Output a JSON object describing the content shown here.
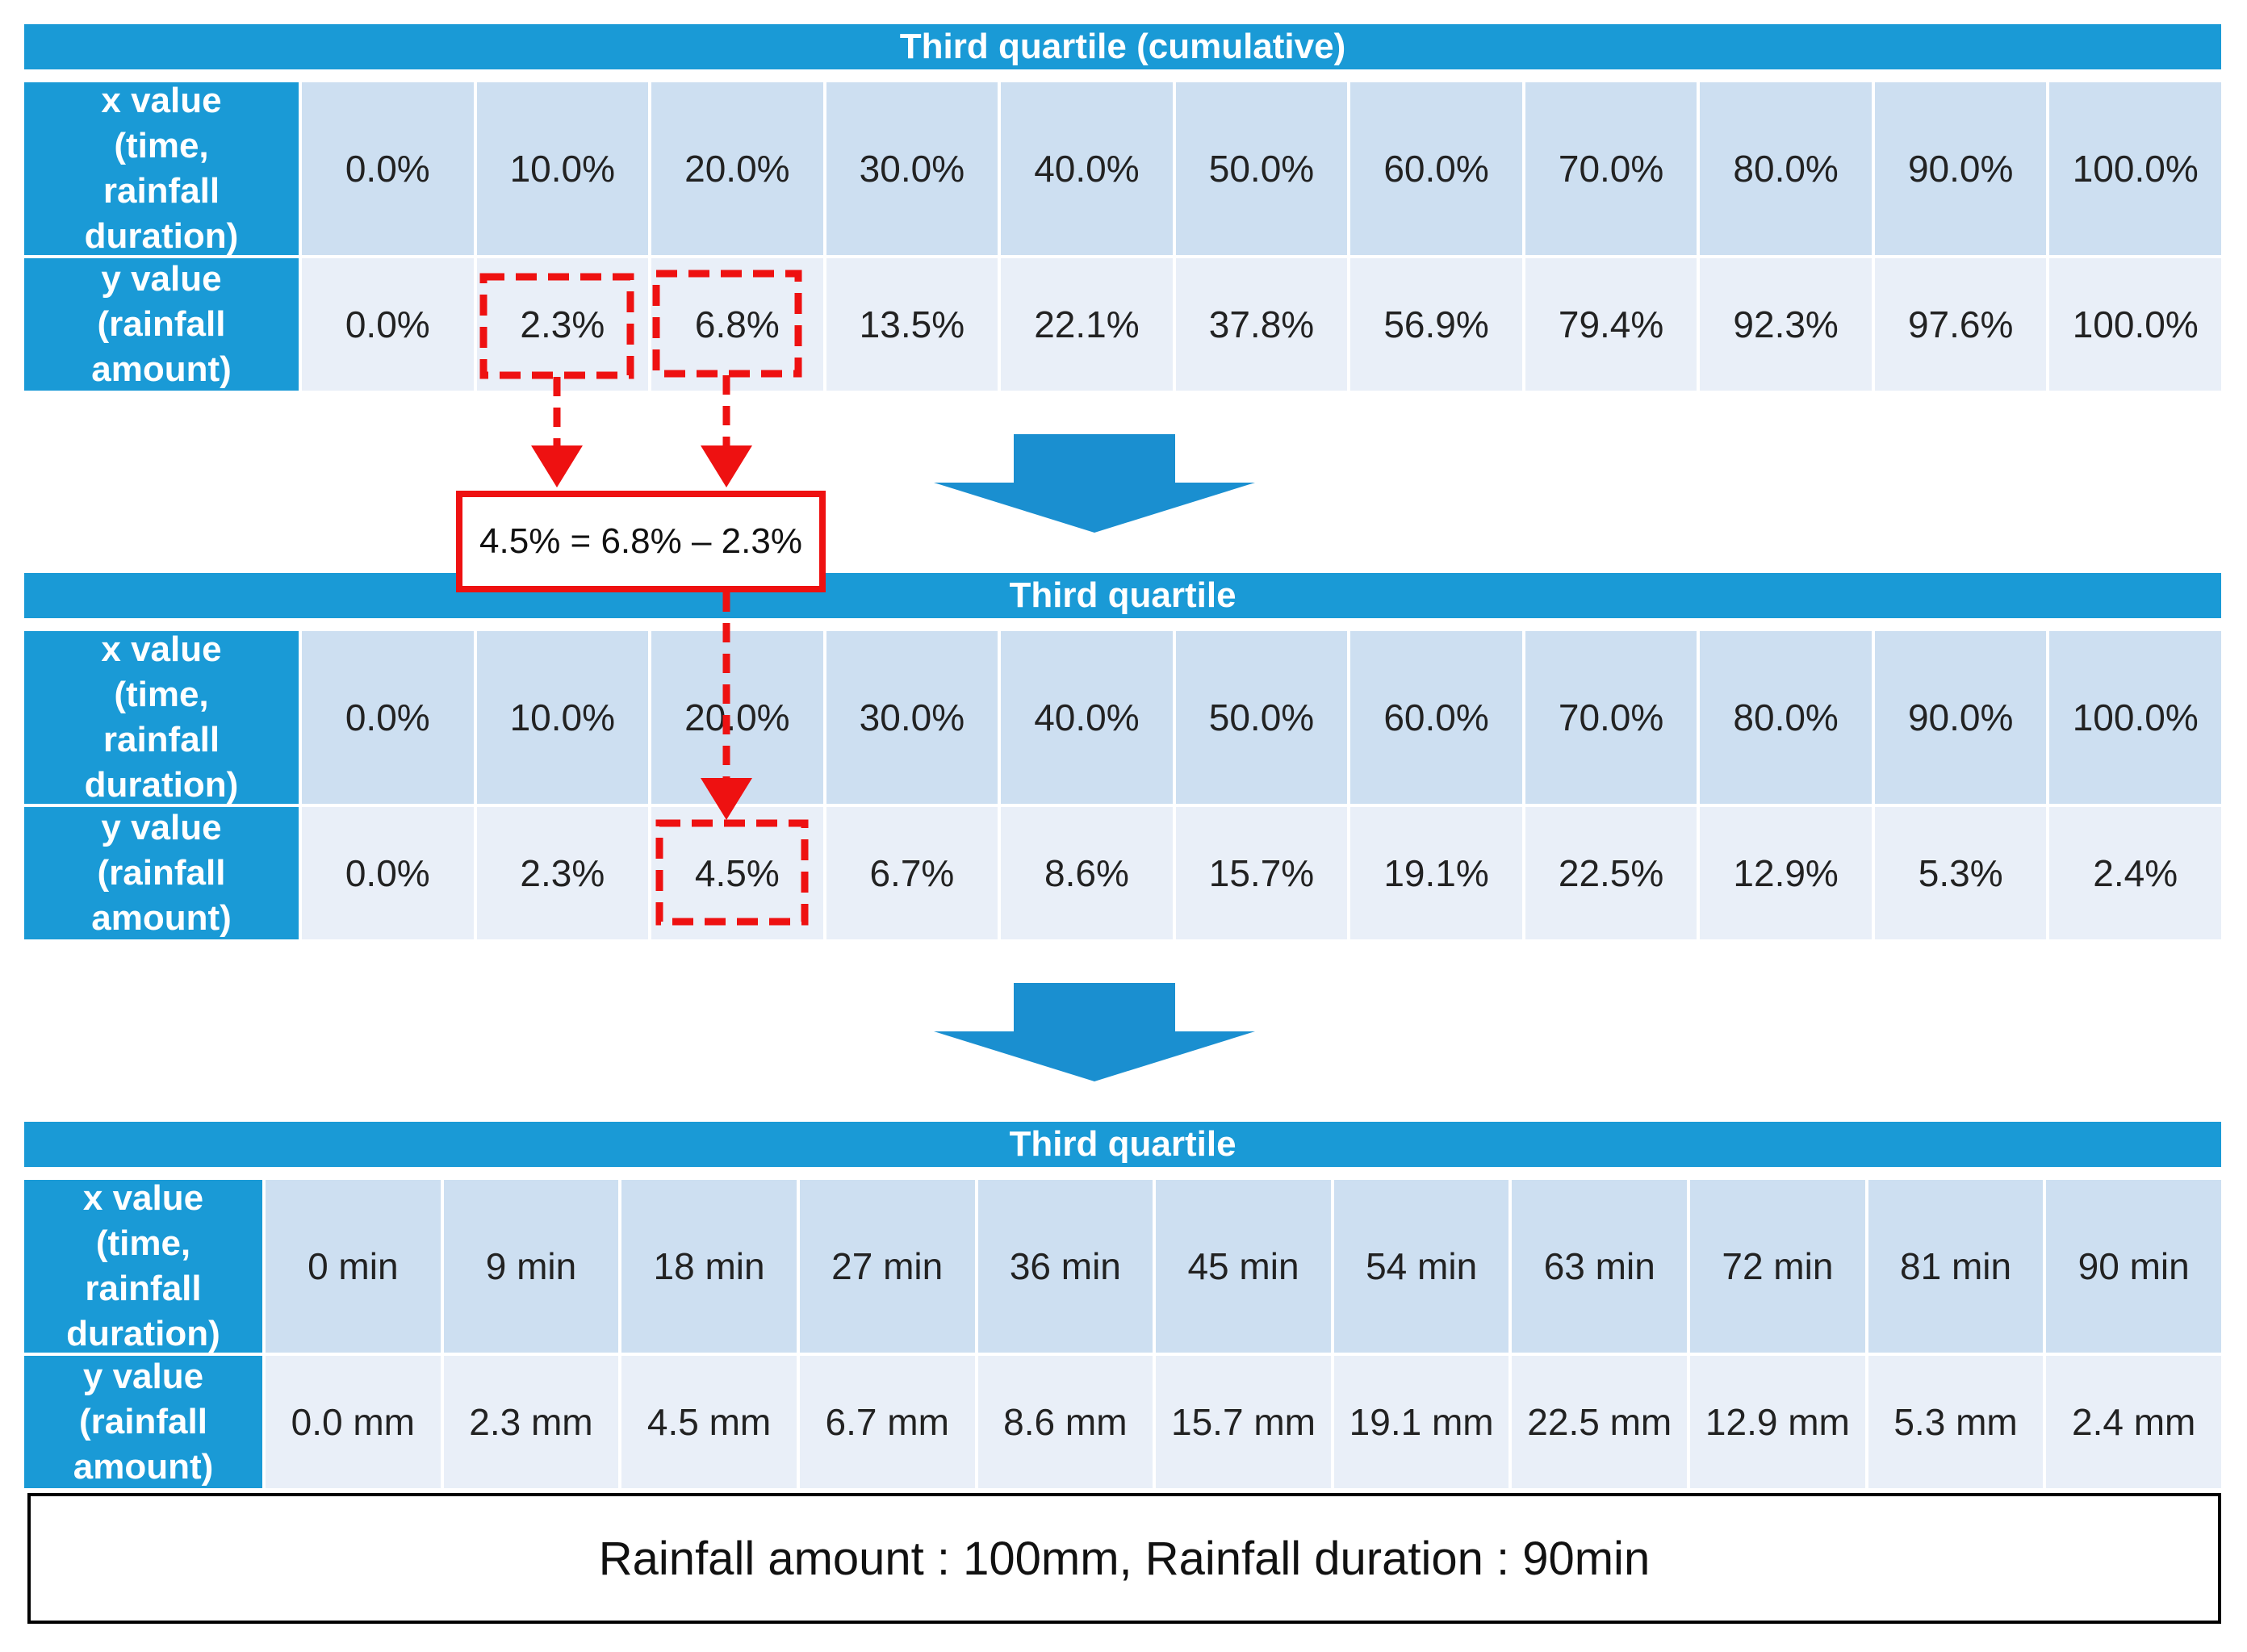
{
  "section1": {
    "title": "Third quartile (cumulative)",
    "x_header": "x value\n(time,\nrainfall\nduration)",
    "y_header": "y value\n(rainfall\namount)",
    "x_values": [
      "0.0%",
      "10.0%",
      "20.0%",
      "30.0%",
      "40.0%",
      "50.0%",
      "60.0%",
      "70.0%",
      "80.0%",
      "90.0%",
      "100.0%"
    ],
    "y_values": [
      "0.0%",
      "2.3%",
      "6.8%",
      "13.5%",
      "22.1%",
      "37.8%",
      "56.9%",
      "79.4%",
      "92.3%",
      "97.6%",
      "100.0%"
    ]
  },
  "formula": "4.5% = 6.8% – 2.3%",
  "section2": {
    "title": "Third quartile",
    "x_header": "x value\n(time,\nrainfall\nduration)",
    "y_header": "y value\n(rainfall\namount)",
    "x_values": [
      "0.0%",
      "10.0%",
      "20.0%",
      "30.0%",
      "40.0%",
      "50.0%",
      "60.0%",
      "70.0%",
      "80.0%",
      "90.0%",
      "100.0%"
    ],
    "y_values": [
      "0.0%",
      "2.3%",
      "4.5%",
      "6.7%",
      "8.6%",
      "15.7%",
      "19.1%",
      "22.5%",
      "12.9%",
      "5.3%",
      "2.4%"
    ]
  },
  "section3": {
    "title": "Third quartile",
    "x_header": "x value\n(time,\nrainfall\nduration)",
    "y_header": "y value\n(rainfall\namount)",
    "x_values": [
      "0 min",
      "9 min",
      "18 min",
      "27 min",
      "36 min",
      "45 min",
      "54 min",
      "63 min",
      "72 min",
      "81 min",
      "90 min"
    ],
    "y_values": [
      "0.0 mm",
      "2.3 mm",
      "4.5 mm",
      "6.7 mm",
      "8.6 mm",
      "15.7 mm",
      "19.1 mm",
      "22.5 mm",
      "12.9 mm",
      "5.3 mm",
      "2.4 mm"
    ]
  },
  "note": "Rainfall  amount :  100mm, Rainfall  duration : 90min",
  "colors": {
    "header_blue": "#1a9ad6",
    "x_row": "#cddff1",
    "y_row": "#e9eff8",
    "highlight_red": "#ee1111"
  }
}
